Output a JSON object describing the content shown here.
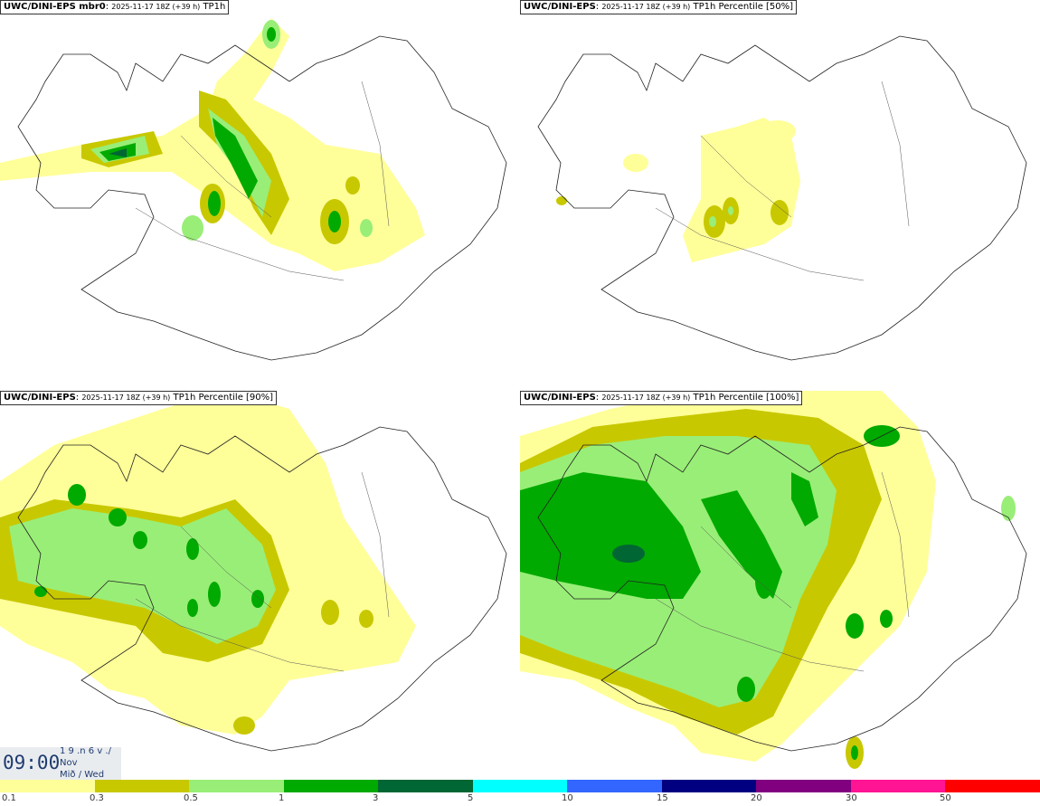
{
  "panels": [
    {
      "model": "UWC/DINI-EPS mbr0",
      "run": "2025-11-17 18Z (+39 h)",
      "field": "TP1h"
    },
    {
      "model": "UWC/DINI-EPS",
      "run": "2025-11-17 18Z (+39 h)",
      "field": "TP1h Percentile [50%]"
    },
    {
      "model": "UWC/DINI-EPS",
      "run": "2025-11-17 18Z (+39 h)",
      "field": "TP1h Percentile [90%]"
    },
    {
      "model": "UWC/DINI-EPS",
      "run": "2025-11-17 18Z (+39 h)",
      "field": "TP1h Percentile [100%]"
    }
  ],
  "time": {
    "clock": "09:00",
    "day": "1 9 .n 6 v ./",
    "month": "Nov",
    "weekday": "Mið / Wed"
  },
  "legend": {
    "labels": [
      "0.1",
      "0.3",
      "0.5",
      "1",
      "3",
      "5",
      "10",
      "15",
      "20",
      "30",
      "50"
    ],
    "colors": [
      "#ffff99",
      "#c8c800",
      "#99ee77",
      "#00aa00",
      "#006633",
      "#00ffff",
      "#3366ff",
      "#000080",
      "#800080",
      "#ff1493",
      "#ff0000"
    ]
  },
  "colors": {
    "light": "#ffff99",
    "mid": "#c8c800",
    "lightgreen": "#99ee77",
    "green": "#00aa00",
    "darkgreen": "#006633",
    "coast": "#222222"
  }
}
